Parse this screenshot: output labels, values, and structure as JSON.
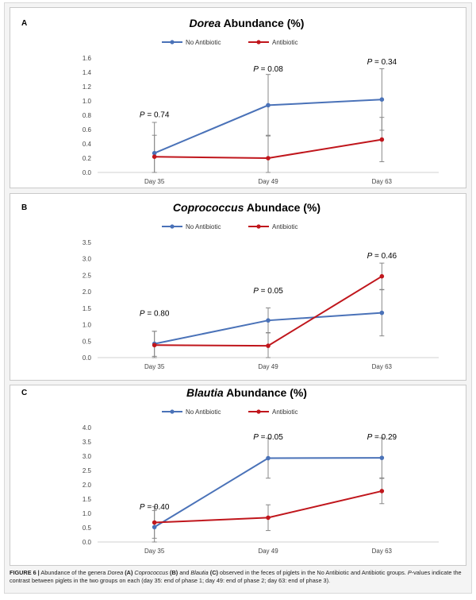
{
  "colors": {
    "no_antibiotic": "#4a72b8",
    "antibiotic": "#c0161c",
    "error_bar": "#888888",
    "axis": "#d0d0d0"
  },
  "caption": {
    "figure_label": "FIGURE 6 |",
    "parts": [
      {
        "text": " Abundance of the genera ",
        "style": "normal"
      },
      {
        "text": "Dorea",
        "style": "italic"
      },
      {
        "text": " ",
        "style": "normal"
      },
      {
        "text": "(A)",
        "style": "bold"
      },
      {
        "text": " ",
        "style": "normal"
      },
      {
        "text": "Coprococcus",
        "style": "italic"
      },
      {
        "text": " ",
        "style": "normal"
      },
      {
        "text": "(B)",
        "style": "bold"
      },
      {
        "text": " and ",
        "style": "normal"
      },
      {
        "text": "Blautia",
        "style": "italic"
      },
      {
        "text": " ",
        "style": "normal"
      },
      {
        "text": "(C)",
        "style": "bold"
      },
      {
        "text": " observed in the feces of piglets in the No Antibiotic and Antibiotic groups. ",
        "style": "normal"
      },
      {
        "text": "P",
        "style": "italic"
      },
      {
        "text": "-values indicate the contrast between piglets in the two groups on each (day 35: end of phase 1; day 49: end of phase 2; day 63: end of phase 3).",
        "style": "normal"
      }
    ]
  },
  "chart_data": [
    {
      "type": "line",
      "panel_letter": "A",
      "title_genus": "Dorea",
      "title_rest": " Abundance (%)",
      "categories": [
        "Day 35",
        "Day 49",
        "Day 63"
      ],
      "ylim": [
        0,
        1.6
      ],
      "yticks": [
        "0.0",
        "0.2",
        "0.4",
        "0.6",
        "0.8",
        "1.0",
        "1.2",
        "1.4",
        "1.6"
      ],
      "legend_position": "top-center",
      "series": [
        {
          "name": "No Antibiotic",
          "values": [
            0.27,
            0.94,
            1.02
          ],
          "error": [
            0.43,
            0.43,
            0.43
          ]
        },
        {
          "name": "Antibiotic",
          "values": [
            0.22,
            0.2,
            0.46
          ],
          "error": [
            0.3,
            0.32,
            0.31
          ]
        }
      ],
      "annotations": [
        "P = 0.74",
        "P = 0.08",
        "P = 0.34"
      ],
      "annotation_values": [
        0.74,
        1.38,
        1.48
      ]
    },
    {
      "type": "line",
      "panel_letter": "B",
      "title_genus": "Coprococcus",
      "title_rest": " Abundace (%)",
      "categories": [
        "Day 35",
        "Day 49",
        "Day 63"
      ],
      "ylim": [
        0,
        3.5
      ],
      "yticks": [
        "0.0",
        "0.5",
        "1.0",
        "1.5",
        "2.0",
        "2.5",
        "3.0",
        "3.5"
      ],
      "legend_position": "top-center",
      "series": [
        {
          "name": "No Antibiotic",
          "values": [
            0.42,
            1.13,
            1.36
          ],
          "error": [
            0.38,
            0.38,
            0.7
          ]
        },
        {
          "name": "Antibiotic",
          "values": [
            0.38,
            0.36,
            2.47
          ],
          "error": [
            0.42,
            0.4,
            0.4
          ]
        }
      ],
      "annotations": [
        "P = 0.80",
        "P = 0.05",
        "P = 0.46"
      ],
      "annotation_values": [
        1.2,
        1.88,
        2.95
      ]
    },
    {
      "type": "line",
      "panel_letter": "C",
      "title_genus": "Blautia",
      "title_rest": " Abundance (%)",
      "categories": [
        "Day 35",
        "Day 49",
        "Day 63"
      ],
      "ylim": [
        0,
        4.0
      ],
      "yticks": [
        "0.0",
        "0.5",
        "1.0",
        "1.5",
        "2.0",
        "2.5",
        "3.0",
        "3.5",
        "4.0"
      ],
      "legend_position": "top-center",
      "series": [
        {
          "name": "No Antibiotic",
          "values": [
            0.52,
            2.93,
            2.94
          ],
          "error": [
            0.58,
            0.7,
            0.7
          ]
        },
        {
          "name": "Antibiotic",
          "values": [
            0.68,
            0.85,
            1.78
          ],
          "error": [
            0.55,
            0.45,
            0.44
          ]
        }
      ],
      "annotations": [
        "P = 0.40",
        "P = 0.05",
        "P = 0.29"
      ],
      "annotation_values": [
        1.05,
        3.5,
        3.5
      ]
    }
  ]
}
